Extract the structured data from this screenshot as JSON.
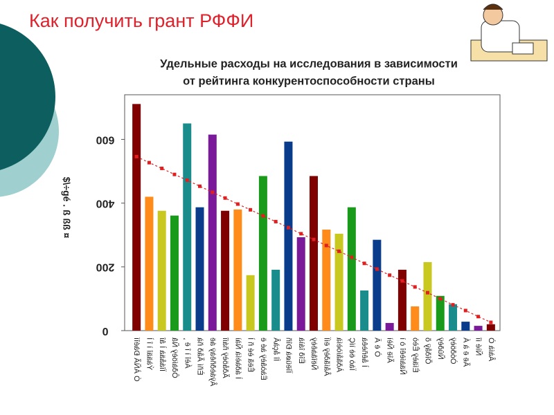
{
  "slide_title": "Как получить грант РФФИ",
  "chart_data": {
    "type": "bar",
    "title": [
      "Удельные расходы на исследования в зависимости",
      "от рейтинга конкурентоспособности страны"
    ],
    "y_label": "$\\÷gé . ß ßß ¤",
    "categories": [
      "Ó ÀÑÃ Ðàéîí",
      "Ýàääî ì î Ì",
      "Ïîáåäà Ì âî",
      "Ôðàíöèÿ Ñâ",
      "Áèî ì î ë ¸",
      "Èñí Ãåð ñà",
      "Âÿáèðñêàÿ áë",
      "Ãðåöèÿ ñáíî",
      "Ì áðàèíà Ñàì",
      "Êëã èé ñ Ì",
      "Ëàòâèÿ àé ë",
      "Íî åçàÂ",
      "Ïîëüøà Ðîñ",
      "Ëîð îáìà",
      "Ñëîâàêèÿ",
      "Âåíãðèÿ ëíÏ",
      "Àðãåíòèíà",
      "Ïàò ëè ìíÇ",
      "Ì åêñèêà",
      "Ò ë Ä",
      "Ãîë Ñèì",
      "Ñäàíèêî ò ì",
      "Èíäèÿ Êèò",
      "Õîðåÿ õ",
      "Ñûðèÿ",
      "Òóðöèÿ",
      "Ãë ë à Á",
      "Ñìé íî",
      "Âàíà Ò"
    ],
    "values": [
      711,
      420,
      376,
      361,
      650,
      387,
      615,
      376,
      380,
      174,
      485,
      191,
      593,
      293,
      485,
      317,
      304,
      387,
      126,
      285,
      24,
      191,
      76,
      215,
      109,
      83,
      28,
      15,
      20
    ],
    "colors": [
      "#800000",
      "#ff8c1a",
      "#c8c820",
      "#1a9a1a",
      "#1a8c8c",
      "#0a3c8c",
      "#7a1a9a"
    ],
    "trend": {
      "color": "#e02020",
      "values": [
        546,
        527,
        509,
        490,
        472,
        453,
        434,
        416,
        397,
        379,
        360,
        342,
        323,
        304,
        286,
        267,
        249,
        230,
        211,
        193,
        174,
        156,
        137,
        119,
        100,
        81,
        63,
        44,
        26
      ]
    },
    "ylim": [
      0,
      740
    ],
    "yticks": [
      0,
      200,
      400,
      600
    ],
    "grid": false
  }
}
